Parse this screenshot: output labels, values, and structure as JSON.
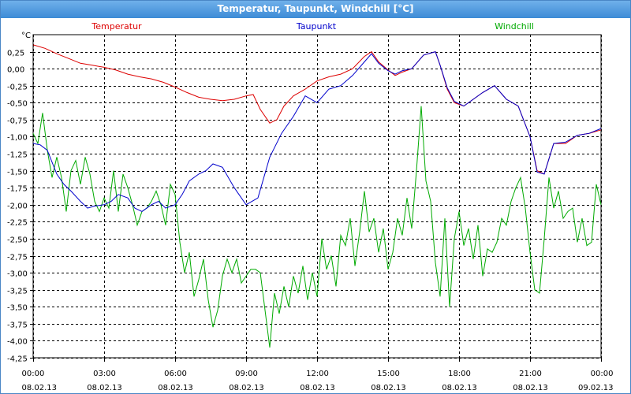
{
  "window": {
    "title": "Temperatur, Taupunkt, Windchill [°C]"
  },
  "chart_data": {
    "type": "line",
    "title": "Temperatur, Taupunkt, Windchill [°C]",
    "ylabel": "°C",
    "ylim": [
      -4.25,
      0.5
    ],
    "yticks": [
      "0,25",
      "0,00",
      "-0,25",
      "-0,50",
      "-0,75",
      "-1,00",
      "-1,25",
      "-1,50",
      "-1,75",
      "-2,00",
      "-2,25",
      "-2,50",
      "-2,75",
      "-3,00",
      "-3,25",
      "-3,50",
      "-3,75",
      "-4,00",
      "-4,25"
    ],
    "ytick_values": [
      0.25,
      0,
      -0.25,
      -0.5,
      -0.75,
      -1,
      -1.25,
      -1.5,
      -1.75,
      -2,
      -2.25,
      -2.5,
      -2.75,
      -3,
      -3.25,
      -3.5,
      -3.75,
      -4,
      -4.25
    ],
    "xlim_hours": [
      0,
      24
    ],
    "xticks": [
      {
        "h": 0,
        "time": "00:00",
        "date": "08.02.13"
      },
      {
        "h": 3,
        "time": "03:00",
        "date": "08.02.13"
      },
      {
        "h": 6,
        "time": "06:00",
        "date": "08.02.13"
      },
      {
        "h": 9,
        "time": "09:00",
        "date": "08.02.13"
      },
      {
        "h": 12,
        "time": "12:00",
        "date": "08.02.13"
      },
      {
        "h": 15,
        "time": "15:00",
        "date": "08.02.13"
      },
      {
        "h": 18,
        "time": "18:00",
        "date": "08.02.13"
      },
      {
        "h": 21,
        "time": "21:00",
        "date": "08.02.13"
      },
      {
        "h": 24,
        "time": "00:00",
        "date": "09.02.13"
      }
    ],
    "grid": true,
    "legend_placement": "top",
    "series": [
      {
        "name": "Temperatur",
        "color": "#dd0000",
        "x": [
          0,
          0.5,
          1,
          1.5,
          2,
          2.5,
          3,
          3.5,
          4,
          4.5,
          5,
          5.5,
          6,
          6.5,
          7,
          7.5,
          8,
          8.5,
          9,
          9.3,
          9.6,
          10,
          10.3,
          10.6,
          11,
          11.5,
          12,
          12.5,
          13,
          13.5,
          14,
          14.3,
          14.6,
          15,
          15.3,
          15.6,
          16,
          16.5,
          17,
          17.2,
          17.5,
          17.8,
          18.2,
          18.6,
          19,
          19.5,
          20,
          20.5,
          21,
          21.3,
          21.6,
          22,
          22.5,
          23,
          23.5,
          24
        ],
        "y": [
          0.35,
          0.3,
          0.22,
          0.15,
          0.08,
          0.05,
          0.02,
          -0.02,
          -0.08,
          -0.12,
          -0.15,
          -0.2,
          -0.27,
          -0.35,
          -0.42,
          -0.45,
          -0.47,
          -0.45,
          -0.4,
          -0.38,
          -0.6,
          -0.8,
          -0.75,
          -0.55,
          -0.4,
          -0.3,
          -0.18,
          -0.12,
          -0.08,
          0,
          0.18,
          0.25,
          0.1,
          -0.02,
          -0.1,
          -0.05,
          0,
          0.2,
          0.25,
          0.05,
          -0.3,
          -0.5,
          -0.55,
          -0.45,
          -0.35,
          -0.25,
          -0.45,
          -0.55,
          -1,
          -1.5,
          -1.55,
          -1.1,
          -1.1,
          -0.98,
          -0.95,
          -0.9
        ]
      },
      {
        "name": "Taupunkt",
        "color": "#0000cc",
        "x": [
          0,
          0.3,
          0.6,
          1,
          1.3,
          1.6,
          2,
          2.3,
          2.6,
          3,
          3.3,
          3.6,
          4,
          4.3,
          4.6,
          5,
          5.3,
          5.6,
          6,
          6.3,
          6.6,
          7,
          7.3,
          7.6,
          8,
          8.5,
          9,
          9.5,
          10,
          10.5,
          11,
          11.5,
          12,
          12.5,
          13,
          13.5,
          14,
          14.3,
          14.6,
          15,
          15.3,
          15.6,
          16,
          16.5,
          17,
          17.2,
          17.5,
          17.8,
          18.2,
          18.6,
          19,
          19.5,
          20,
          20.5,
          21,
          21.3,
          21.6,
          22,
          22.5,
          23,
          23.5,
          24
        ],
        "y": [
          -1.1,
          -1.12,
          -1.2,
          -1.55,
          -1.7,
          -1.8,
          -1.95,
          -2.05,
          -2.02,
          -2.0,
          -1.95,
          -1.85,
          -1.9,
          -2.05,
          -2.1,
          -2.0,
          -1.95,
          -2.05,
          -2.0,
          -1.85,
          -1.65,
          -1.55,
          -1.5,
          -1.4,
          -1.45,
          -1.75,
          -2.0,
          -1.9,
          -1.3,
          -0.95,
          -0.7,
          -0.4,
          -0.5,
          -0.3,
          -0.25,
          -0.1,
          0.1,
          0.22,
          0.08,
          -0.03,
          -0.08,
          -0.03,
          0.0,
          0.2,
          0.25,
          0.05,
          -0.28,
          -0.48,
          -0.55,
          -0.45,
          -0.35,
          -0.25,
          -0.45,
          -0.55,
          -1.0,
          -1.52,
          -1.55,
          -1.1,
          -1.08,
          -0.98,
          -0.95,
          -0.88
        ]
      },
      {
        "name": "Windchill",
        "color": "#00aa00",
        "x": [
          0,
          0.2,
          0.4,
          0.6,
          0.8,
          1,
          1.2,
          1.4,
          1.6,
          1.8,
          2,
          2.2,
          2.4,
          2.6,
          2.8,
          3,
          3.2,
          3.4,
          3.6,
          3.8,
          4,
          4.2,
          4.4,
          4.6,
          4.8,
          5,
          5.2,
          5.4,
          5.6,
          5.8,
          6,
          6.2,
          6.4,
          6.6,
          6.8,
          7,
          7.2,
          7.4,
          7.6,
          7.8,
          8,
          8.2,
          8.4,
          8.6,
          8.8,
          9,
          9.2,
          9.4,
          9.6,
          9.8,
          10,
          10.2,
          10.4,
          10.6,
          10.8,
          11,
          11.2,
          11.4,
          11.6,
          11.8,
          12,
          12.2,
          12.4,
          12.6,
          12.8,
          13,
          13.2,
          13.4,
          13.6,
          13.8,
          14,
          14.2,
          14.4,
          14.6,
          14.8,
          15,
          15.2,
          15.4,
          15.6,
          15.8,
          16,
          16.2,
          16.4,
          16.6,
          16.8,
          17,
          17.2,
          17.4,
          17.6,
          17.8,
          18,
          18.2,
          18.4,
          18.6,
          18.8,
          19,
          19.2,
          19.4,
          19.6,
          19.8,
          20,
          20.2,
          20.4,
          20.6,
          20.8,
          21,
          21.2,
          21.4,
          21.6,
          21.8,
          22,
          22.2,
          22.4,
          22.6,
          22.8,
          23,
          23.2,
          23.4,
          23.6,
          23.8,
          24
        ],
        "y": [
          -0.95,
          -1.1,
          -0.65,
          -1.2,
          -1.6,
          -1.3,
          -1.6,
          -2.1,
          -1.5,
          -1.35,
          -1.7,
          -1.3,
          -1.55,
          -1.95,
          -2.1,
          -1.9,
          -2.05,
          -1.5,
          -2.1,
          -1.55,
          -1.75,
          -2.0,
          -2.3,
          -2.1,
          -2.05,
          -1.95,
          -1.8,
          -2.0,
          -2.3,
          -1.7,
          -1.85,
          -2.55,
          -3.0,
          -2.7,
          -3.35,
          -3.1,
          -2.8,
          -3.4,
          -3.8,
          -3.55,
          -3.05,
          -2.8,
          -3.0,
          -2.8,
          -3.15,
          -3.05,
          -2.95,
          -2.95,
          -3.0,
          -3.55,
          -4.1,
          -3.3,
          -3.6,
          -3.2,
          -3.5,
          -3.05,
          -3.3,
          -2.9,
          -3.4,
          -3.0,
          -3.35,
          -2.5,
          -2.95,
          -2.75,
          -3.2,
          -2.45,
          -2.6,
          -2.2,
          -2.9,
          -2.4,
          -1.8,
          -2.4,
          -2.2,
          -2.7,
          -2.35,
          -2.95,
          -2.7,
          -2.2,
          -2.45,
          -1.9,
          -2.35,
          -1.5,
          -0.55,
          -1.65,
          -1.95,
          -2.85,
          -3.35,
          -2.2,
          -3.5,
          -2.5,
          -2.1,
          -2.6,
          -2.35,
          -2.8,
          -2.3,
          -3.05,
          -2.65,
          -2.7,
          -2.55,
          -2.2,
          -2.3,
          -1.95,
          -1.75,
          -1.6,
          -2.05,
          -2.7,
          -3.25,
          -3.3,
          -2.5,
          -1.6,
          -2.05,
          -1.8,
          -2.2,
          -2.1,
          -2.05,
          -2.55,
          -2.2,
          -2.6,
          -2.55,
          -1.7,
          -2.0
        ]
      }
    ]
  }
}
